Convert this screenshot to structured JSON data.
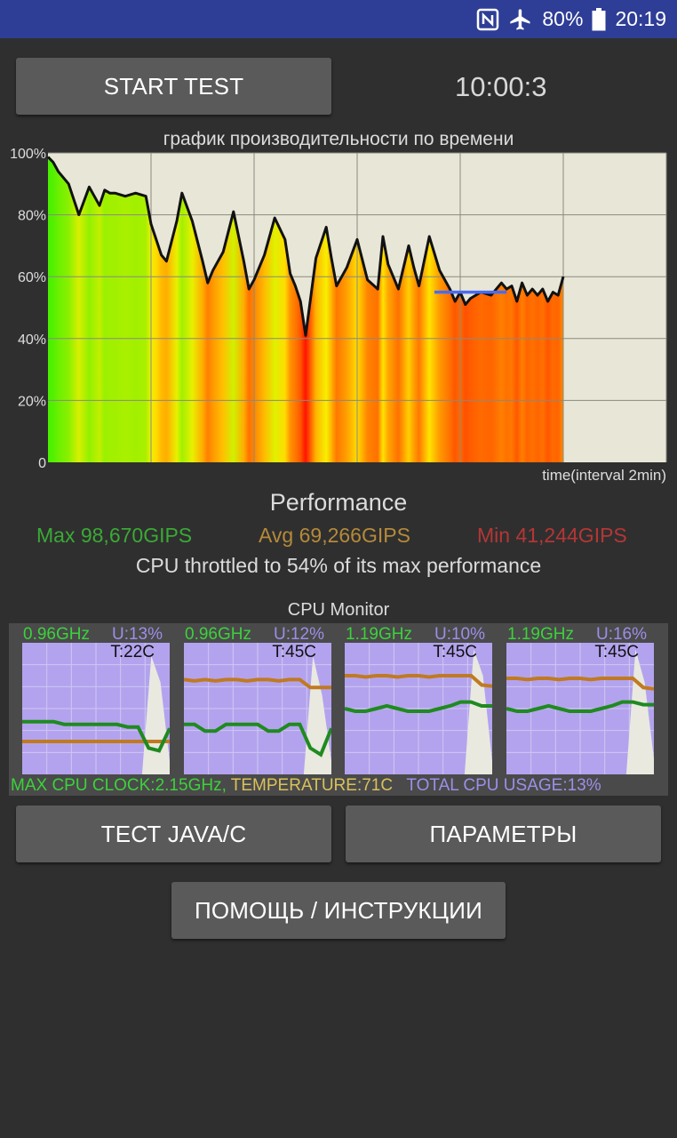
{
  "status_bar": {
    "nfc_icon": "nfc-icon",
    "airplane_icon": "airplane-icon",
    "battery_percent": "80%",
    "battery_icon": "battery-icon",
    "time": "20:19"
  },
  "controls": {
    "start_label": "START TEST",
    "timer": "10:00:3"
  },
  "chart_data": {
    "type": "line",
    "title": "график производительности по времени",
    "xlabel": "time(interval 2min)",
    "ylabel": "",
    "y_tick_labels": [
      "100%",
      "80%",
      "60%",
      "40%",
      "20%",
      "0"
    ],
    "ylim": [
      0,
      100
    ],
    "xlim": [
      0,
      12
    ],
    "x_unit": "minutes",
    "grid": true,
    "fill": "gradient by value: green (high) → yellow → red (low)",
    "x": [
      0,
      0.1,
      0.2,
      0.4,
      0.6,
      0.8,
      1.0,
      1.1,
      1.2,
      1.3,
      1.5,
      1.7,
      1.9,
      2.0,
      2.1,
      2.2,
      2.3,
      2.5,
      2.6,
      2.8,
      3.0,
      3.1,
      3.2,
      3.4,
      3.6,
      3.8,
      3.9,
      4.0,
      4.2,
      4.4,
      4.6,
      4.7,
      4.8,
      4.9,
      5.0,
      5.2,
      5.4,
      5.5,
      5.6,
      5.8,
      6.0,
      6.2,
      6.4,
      6.5,
      6.6,
      6.8,
      7.0,
      7.1,
      7.2,
      7.4,
      7.6,
      7.8,
      7.9,
      8.0,
      8.1,
      8.2,
      8.4,
      8.6,
      8.8,
      8.9,
      9.0,
      9.1,
      9.2,
      9.3,
      9.4,
      9.5,
      9.6,
      9.7,
      9.8,
      9.9,
      10.0
    ],
    "values": [
      98.7,
      97,
      94,
      90,
      80,
      89,
      83,
      88,
      87,
      87,
      86,
      87,
      86,
      77,
      72,
      67,
      65,
      78,
      87,
      78,
      65,
      58,
      62,
      68,
      81,
      65,
      56,
      59,
      67,
      79,
      72,
      61,
      57,
      52,
      41,
      66,
      76,
      66,
      57,
      63,
      72,
      59,
      56,
      73,
      64,
      56,
      70,
      63,
      57,
      73,
      62,
      56,
      52,
      55,
      51,
      53,
      55,
      54,
      58,
      56,
      57,
      52,
      58,
      54,
      56,
      54,
      56,
      52,
      55,
      54,
      60
    ],
    "max_performance_marker": {
      "x": [
        7.5,
        8.9
      ],
      "y": 55
    }
  },
  "performance": {
    "heading": "Performance",
    "max": "Max 98,670GIPS",
    "avg": "Avg 69,266GIPS",
    "min": "Min 41,244GIPS",
    "throttle_text": "CPU throttled to 54% of its max performance",
    "colors": {
      "max": "#3aaa35",
      "avg": "#b58a3a",
      "min": "#b53636"
    }
  },
  "cpu_monitor": {
    "title": "CPU Monitor",
    "cores": [
      {
        "freq": "0.96GHz",
        "usage": "U:13%",
        "temp": "T:22C",
        "freq_series": [
          40,
          40,
          40,
          40,
          38,
          38,
          38,
          38,
          38,
          38,
          36,
          36,
          20,
          18,
          35
        ],
        "temp_series": [
          25,
          25,
          25,
          25,
          25,
          25,
          25,
          25,
          25,
          25,
          25,
          25,
          25,
          25,
          25
        ],
        "usage_series": [
          0,
          0,
          0,
          0,
          0,
          0,
          0,
          0,
          0,
          0,
          0,
          0,
          0,
          0,
          90,
          70,
          10
        ]
      },
      {
        "freq": "0.96GHz",
        "usage": "U:12%",
        "temp": "T:45C",
        "freq_series": [
          38,
          38,
          33,
          33,
          38,
          38,
          38,
          38,
          33,
          33,
          38,
          38,
          20,
          15,
          35
        ],
        "temp_series": [
          72,
          71,
          72,
          71,
          72,
          72,
          71,
          72,
          72,
          71,
          72,
          72,
          66,
          66,
          66
        ],
        "usage_series": [
          0,
          0,
          0,
          0,
          0,
          0,
          0,
          0,
          0,
          0,
          0,
          0,
          0,
          0,
          90,
          60,
          10
        ]
      },
      {
        "freq": "1.19GHz",
        "usage": "U:10%",
        "temp": "T:45C",
        "freq_series": [
          50,
          48,
          48,
          50,
          52,
          50,
          48,
          48,
          48,
          50,
          52,
          55,
          55,
          52,
          52
        ],
        "temp_series": [
          75,
          75,
          74,
          75,
          75,
          74,
          75,
          75,
          74,
          75,
          75,
          75,
          75,
          68,
          67
        ],
        "usage_series": [
          0,
          0,
          0,
          0,
          0,
          0,
          0,
          0,
          0,
          0,
          0,
          0,
          0,
          0,
          95,
          75,
          10
        ]
      },
      {
        "freq": "1.19GHz",
        "usage": "U:16%",
        "temp": "T:45C",
        "freq_series": [
          50,
          48,
          48,
          50,
          52,
          50,
          48,
          48,
          48,
          50,
          52,
          55,
          55,
          53,
          53
        ],
        "temp_series": [
          73,
          73,
          72,
          73,
          73,
          72,
          73,
          73,
          72,
          73,
          73,
          73,
          73,
          66,
          65
        ],
        "usage_series": [
          0,
          0,
          0,
          0,
          0,
          0,
          0,
          0,
          0,
          0,
          0,
          0,
          0,
          0,
          95,
          70,
          12
        ]
      }
    ],
    "footer_clock": "MAX CPU CLOCK:2.15GHz,",
    "footer_temp": "TEMPERATURE:71C",
    "footer_usage": "TOTAL CPU USAGE:13%",
    "colors": {
      "freq": "#1f8a1f",
      "temp": "#c07a20",
      "usage_fill": "#e9e9e0",
      "plot_bg": "#b3a3ee"
    }
  },
  "buttons": {
    "java_c": "ТЕСТ JAVA/C",
    "params": "ПАРАМЕТРЫ",
    "help": "ПОМОЩЬ / ИНСТРУКЦИИ"
  }
}
